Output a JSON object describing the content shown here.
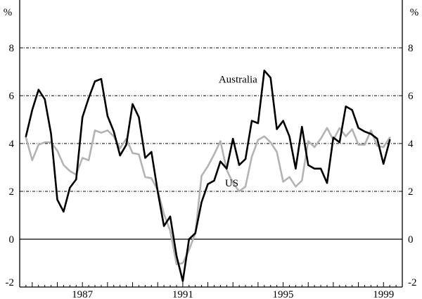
{
  "chart_data": {
    "type": "line",
    "title": "",
    "xlabel": "",
    "ylabel": "%",
    "ylabel_right": "%",
    "xlim": [
      1984.5,
      1999.75
    ],
    "ylim": [
      -2,
      10
    ],
    "yticks": [
      -2,
      0,
      2,
      4,
      6,
      8
    ],
    "ytick_labels": [
      "-2",
      "0",
      "2",
      "4",
      "6",
      "8"
    ],
    "xticks": [
      1987,
      1991,
      1995,
      1999
    ],
    "xtick_labels": [
      "1987",
      "1991",
      "1995",
      "1999"
    ],
    "grid": "horizontal dotted at 2, 4, 6, 8; solid line at 0",
    "series": [
      {
        "name": "Australia",
        "color": "#000000",
        "x": [
          1984.75,
          1985.0,
          1985.25,
          1985.5,
          1985.75,
          1986.0,
          1986.25,
          1986.5,
          1986.75,
          1987.0,
          1987.25,
          1987.5,
          1987.75,
          1988.0,
          1988.25,
          1988.5,
          1988.75,
          1989.0,
          1989.25,
          1989.5,
          1989.75,
          1990.0,
          1990.25,
          1990.5,
          1990.75,
          1991.0,
          1991.25,
          1991.5,
          1991.75,
          1992.0,
          1992.25,
          1992.5,
          1992.75,
          1993.0,
          1993.25,
          1993.5,
          1993.75,
          1994.0,
          1994.25,
          1994.5,
          1994.75,
          1995.0,
          1995.25,
          1995.5,
          1995.75,
          1996.0,
          1996.25,
          1996.5,
          1996.75,
          1997.0,
          1997.25,
          1997.5,
          1997.75,
          1998.0,
          1998.25,
          1998.5,
          1998.75,
          1999.0,
          1999.25
        ],
        "values": [
          4.3,
          5.4,
          6.25,
          5.85,
          4.4,
          1.65,
          1.15,
          2.15,
          2.5,
          5.1,
          5.9,
          6.6,
          6.7,
          5.15,
          4.5,
          3.5,
          3.95,
          5.65,
          5.1,
          3.4,
          3.65,
          2.0,
          0.55,
          0.95,
          -0.7,
          -1.75,
          0.0,
          0.25,
          1.55,
          2.3,
          2.45,
          3.25,
          2.95,
          4.2,
          3.1,
          3.35,
          4.95,
          4.85,
          7.05,
          6.75,
          4.6,
          4.95,
          4.3,
          2.95,
          4.7,
          3.1,
          2.95,
          2.95,
          2.35,
          4.25,
          4.05,
          5.55,
          5.4,
          4.65,
          4.5,
          4.4,
          4.2,
          3.15,
          4.15
        ]
      },
      {
        "name": "US",
        "color": "#b3b3b3",
        "x": [
          1984.75,
          1985.0,
          1985.25,
          1985.5,
          1985.75,
          1986.0,
          1986.25,
          1986.5,
          1986.75,
          1987.0,
          1987.25,
          1987.5,
          1987.75,
          1988.0,
          1988.25,
          1988.5,
          1988.75,
          1989.0,
          1989.25,
          1989.5,
          1989.75,
          1990.0,
          1990.25,
          1990.5,
          1990.75,
          1991.0,
          1991.25,
          1991.5,
          1991.75,
          1992.0,
          1992.25,
          1992.5,
          1992.75,
          1993.0,
          1993.25,
          1993.5,
          1993.75,
          1994.0,
          1994.25,
          1994.5,
          1994.75,
          1995.0,
          1995.25,
          1995.5,
          1995.75,
          1996.0,
          1996.25,
          1996.5,
          1996.75,
          1997.0,
          1997.25,
          1997.5,
          1997.75,
          1998.0,
          1998.25,
          1998.5,
          1998.75,
          1999.0,
          1999.25
        ],
        "values": [
          4.25,
          3.3,
          3.95,
          4.05,
          4.05,
          3.7,
          3.1,
          2.85,
          2.7,
          3.4,
          3.3,
          4.55,
          4.45,
          4.55,
          4.3,
          3.8,
          4.2,
          3.6,
          3.55,
          2.6,
          2.55,
          2.05,
          1.05,
          0.35,
          -1.05,
          -1.0,
          -0.45,
          0.25,
          2.65,
          3.05,
          3.55,
          4.1,
          2.9,
          2.35,
          2.0,
          2.2,
          3.45,
          4.15,
          4.3,
          4.05,
          3.65,
          2.4,
          2.6,
          2.2,
          2.45,
          4.1,
          3.85,
          4.2,
          4.65,
          4.15,
          4.65,
          4.3,
          4.6,
          3.95,
          3.95,
          4.55,
          3.9,
          3.85,
          4.25
        ]
      }
    ],
    "annotations": [
      {
        "text": "Australia",
        "x": 1993.2,
        "y": 6.55,
        "series": 0
      },
      {
        "text": "US",
        "x": 1992.95,
        "y": 2.2,
        "series": 1
      }
    ]
  }
}
